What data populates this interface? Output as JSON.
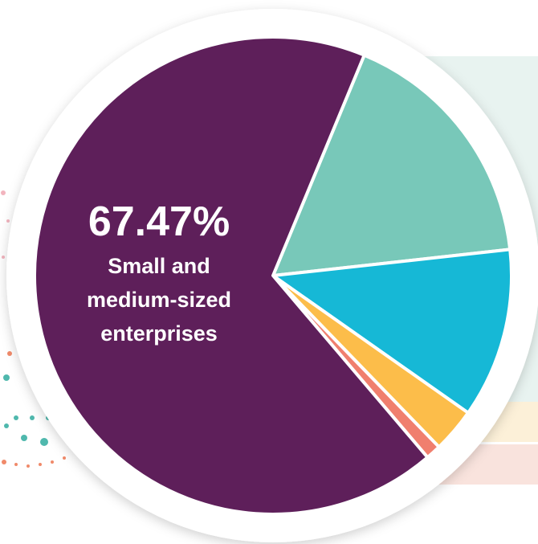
{
  "chart_data": {
    "type": "pie",
    "slices": [
      {
        "value": 67.47,
        "color": "#5e1f5a",
        "label_value": "67.47%",
        "label_lines": [
          "Small and",
          "medium-sized",
          "enterprises"
        ]
      },
      {
        "value": 17.0,
        "color": "#78c8b9"
      },
      {
        "value": 11.5,
        "color": "#16b8d6"
      },
      {
        "value": 3.0,
        "color": "#fcbd4a"
      },
      {
        "value": 1.03,
        "color": "#f07f6e"
      }
    ]
  },
  "colors": {
    "ring": "#ffffff",
    "band_top": "#e8f3f0",
    "band_mid": "#fcf0d8",
    "band_bottom": "#f9e3dd",
    "dots_pink": "#f2b4be",
    "dots_teal": "#4fb8ad",
    "dots_orange": "#f08a6a"
  }
}
